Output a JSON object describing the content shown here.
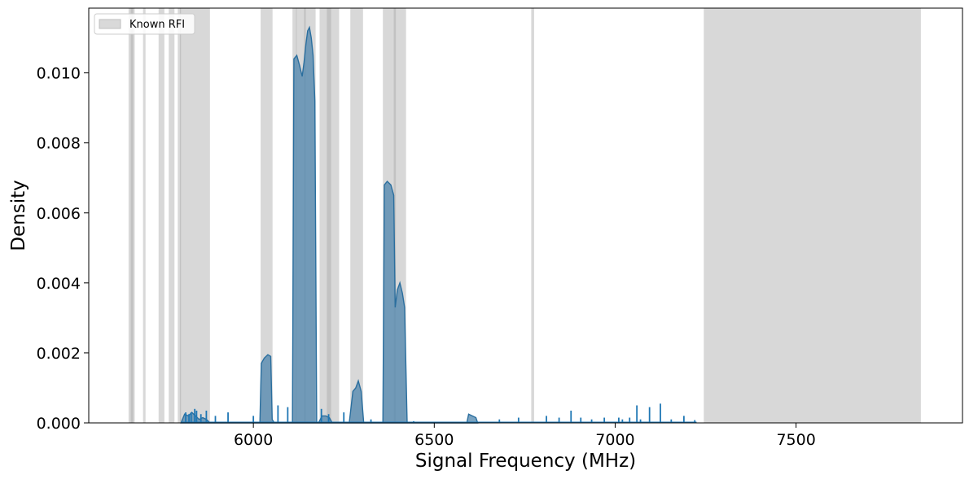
{
  "chart_data": {
    "type": "area",
    "title": "",
    "xlabel": "Signal Frequency (MHz)",
    "ylabel": "Density",
    "xlim": [
      5545,
      7960
    ],
    "ylim": [
      0,
      0.01185
    ],
    "x_ticks": [
      6000,
      6500,
      7000,
      7500
    ],
    "x_tick_labels": [
      "6000",
      "6500",
      "7000",
      "7500"
    ],
    "y_ticks": [
      0,
      0.002,
      0.004,
      0.006,
      0.008,
      0.01
    ],
    "y_tick_labels": [
      "0.000",
      "0.002",
      "0.004",
      "0.006",
      "0.008",
      "0.010"
    ],
    "grid": false,
    "legend": {
      "position": "top-left",
      "entries": [
        {
          "label": "Known RFI",
          "color": "#bfbfbf"
        }
      ]
    },
    "rfi_bands": [
      [
        5655,
        5668
      ],
      [
        5661,
        5672
      ],
      [
        5695,
        5702
      ],
      [
        5738,
        5754
      ],
      [
        5766,
        5782
      ],
      [
        5791,
        5800
      ],
      [
        5797,
        5880
      ],
      [
        6020,
        6053
      ],
      [
        6108,
        6120
      ],
      [
        6118,
        6145
      ],
      [
        6140,
        6172
      ],
      [
        6183,
        6215
      ],
      [
        6203,
        6237
      ],
      [
        6268,
        6303
      ],
      [
        6358,
        6394
      ],
      [
        6388,
        6422
      ],
      [
        6768,
        6776
      ],
      [
        7245,
        7845
      ]
    ],
    "density": {
      "x": [
        5800,
        5810,
        5820,
        5830,
        5835,
        5840,
        5845,
        5850,
        5860,
        5870,
        5880,
        6018,
        6022,
        6030,
        6040,
        6048,
        6052,
        6058,
        6108,
        6112,
        6120,
        6128,
        6135,
        6140,
        6145,
        6150,
        6155,
        6160,
        6165,
        6170,
        6175,
        6180,
        6190,
        6200,
        6210,
        6218,
        6265,
        6275,
        6283,
        6290,
        6298,
        6305,
        6358,
        6362,
        6370,
        6380,
        6388,
        6392,
        6398,
        6405,
        6412,
        6418,
        6425,
        6590,
        6595,
        6605,
        6615,
        6620
      ],
      "y": [
        0,
        0.00025,
        0.0002,
        0.0003,
        0.00025,
        0.0002,
        0.00015,
        0.0001,
        0.00015,
        0.0001,
        0,
        0,
        0.0017,
        0.00185,
        0.00195,
        0.0019,
        0.0001,
        0,
        0,
        0.0104,
        0.0105,
        0.0102,
        0.0099,
        0.0103,
        0.0108,
        0.0112,
        0.0113,
        0.011,
        0.0105,
        0.0092,
        0,
        0,
        0.0002,
        0.0002,
        0.00015,
        0,
        0,
        0.0009,
        0.001,
        0.0012,
        0.0009,
        0,
        0,
        0.0068,
        0.0069,
        0.0068,
        0.0065,
        0.0033,
        0.0038,
        0.004,
        0.0037,
        0.0033,
        0,
        0,
        0.00025,
        0.0002,
        0.00015,
        0
      ]
    },
    "spikes": {
      "x": [
        5813,
        5822,
        5828,
        5838,
        5843,
        5855,
        5870,
        5895,
        5930,
        6000,
        6068,
        6095,
        6188,
        6208,
        6250,
        6325,
        6443,
        6680,
        6733,
        6810,
        6845,
        6878,
        6905,
        6935,
        6970,
        7010,
        7020,
        7040,
        7060,
        7070,
        7095,
        7125,
        7155,
        7190,
        7220
      ],
      "y": [
        0.0003,
        0.00025,
        0.0003,
        0.0004,
        0.00035,
        0.00025,
        0.00035,
        0.0002,
        0.0003,
        0.0002,
        0.0005,
        0.00045,
        0.0004,
        0.00025,
        0.0003,
        0.0001,
        5e-05,
        0.0001,
        0.00015,
        0.0002,
        0.00015,
        0.00035,
        0.00015,
        0.0001,
        0.00015,
        0.00015,
        0.0001,
        0.00015,
        0.0005,
        0.0001,
        0.00045,
        0.00055,
        0.0001,
        0.0002,
        8e-05
      ]
    }
  }
}
